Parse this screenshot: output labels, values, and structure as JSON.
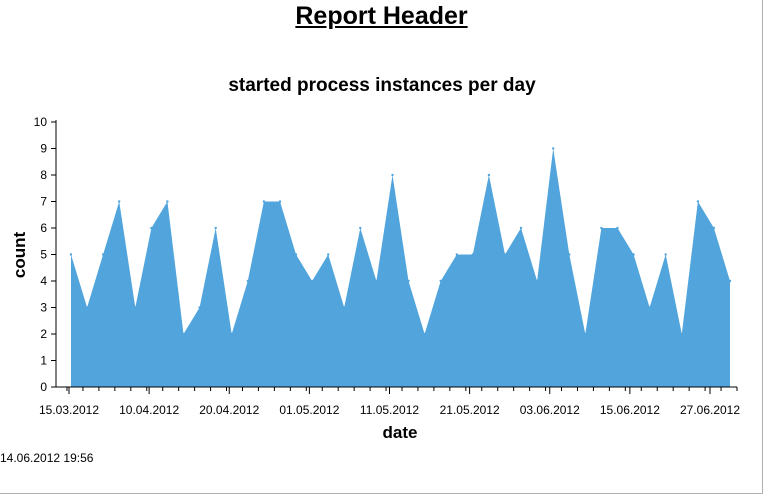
{
  "report": {
    "header": "Report Header",
    "timestamp": "14.06.2012 19:56"
  },
  "colors": {
    "area": "#51a5dc",
    "axis": "#000000"
  },
  "chart_data": {
    "type": "area",
    "title": "started process instances per day",
    "xlabel": "date",
    "ylabel": "count",
    "ylim": [
      0,
      10
    ],
    "yticks": [
      0,
      1,
      2,
      3,
      4,
      5,
      6,
      7,
      8,
      9,
      10
    ],
    "xtick_labels": [
      "15.03.2012",
      "10.04.2012",
      "20.04.2012",
      "01.05.2012",
      "11.05.2012",
      "21.05.2012",
      "03.06.2012",
      "15.06.2012",
      "27.06.2012"
    ],
    "grid": false,
    "legend": "none",
    "values": [
      5,
      3,
      5,
      7,
      3,
      6,
      7,
      2,
      3,
      6,
      2,
      4,
      7,
      7,
      5,
      4,
      5,
      3,
      6,
      4,
      8,
      4,
      2,
      4,
      5,
      5,
      8,
      5,
      6,
      4,
      9,
      5,
      2,
      6,
      6,
      5,
      3,
      5,
      2,
      7,
      6,
      4
    ]
  }
}
